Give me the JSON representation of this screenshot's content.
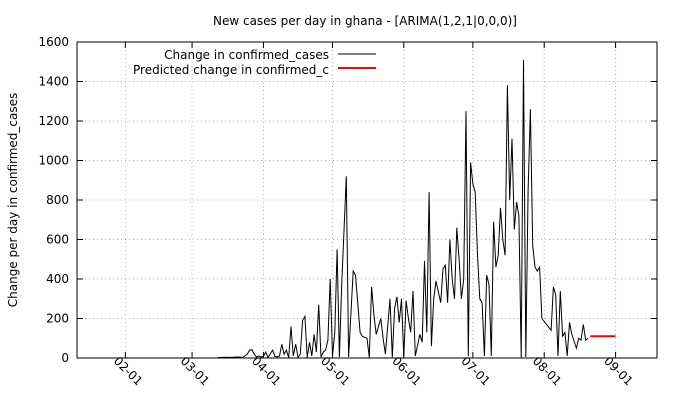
{
  "chart_data": {
    "type": "line",
    "title": "New cases per day in ghana -  [ARIMA(1,2,1|0,0,0)]",
    "xlabel": "",
    "ylabel": "Change per day in confirmed_cases",
    "ylim": [
      0,
      1600
    ],
    "yticks": [
      0,
      200,
      400,
      600,
      800,
      1000,
      1200,
      1400,
      1600
    ],
    "xlim": [
      "2020-01-11",
      "2020-09-19"
    ],
    "xticks": [
      "2020-02-01",
      "2020-03-01",
      "2020-04-01",
      "2020-05-01",
      "2020-06-01",
      "2020-07-01",
      "2020-08-01",
      "2020-09-01"
    ],
    "xtick_labels": [
      "02-01",
      "03-01",
      "04-01",
      "05-01",
      "06-01",
      "07-01",
      "08-01",
      "09-01"
    ],
    "grid": true,
    "legend_position": "top-left",
    "series": [
      {
        "name": "Change in confirmed_cases",
        "color": "#000000",
        "points": [
          [
            "2020-03-12",
            2
          ],
          [
            "2020-03-15",
            4
          ],
          [
            "2020-03-18",
            3
          ],
          [
            "2020-03-21",
            5
          ],
          [
            "2020-03-23",
            3
          ],
          [
            "2020-03-25",
            20
          ],
          [
            "2020-03-26",
            40
          ],
          [
            "2020-03-27",
            42
          ],
          [
            "2020-03-28",
            20
          ],
          [
            "2020-03-29",
            5
          ],
          [
            "2020-03-30",
            10
          ],
          [
            "2020-03-31",
            5
          ],
          [
            "2020-04-01",
            8
          ],
          [
            "2020-04-02",
            30
          ],
          [
            "2020-04-03",
            3
          ],
          [
            "2020-04-05",
            40
          ],
          [
            "2020-04-06",
            8
          ],
          [
            "2020-04-07",
            5
          ],
          [
            "2020-04-08",
            10
          ],
          [
            "2020-04-09",
            70
          ],
          [
            "2020-04-10",
            20
          ],
          [
            "2020-04-11",
            40
          ],
          [
            "2020-04-12",
            2
          ],
          [
            "2020-04-13",
            160
          ],
          [
            "2020-04-14",
            10
          ],
          [
            "2020-04-15",
            70
          ],
          [
            "2020-04-16",
            2
          ],
          [
            "2020-04-17",
            20
          ],
          [
            "2020-04-18",
            190
          ],
          [
            "2020-04-19",
            210
          ],
          [
            "2020-04-20",
            2
          ],
          [
            "2020-04-21",
            80
          ],
          [
            "2020-04-22",
            10
          ],
          [
            "2020-04-23",
            120
          ],
          [
            "2020-04-24",
            30
          ],
          [
            "2020-04-25",
            270
          ],
          [
            "2020-04-26",
            5
          ],
          [
            "2020-04-27",
            30
          ],
          [
            "2020-04-28",
            40
          ],
          [
            "2020-04-29",
            90
          ],
          [
            "2020-04-30",
            400
          ],
          [
            "2020-05-01",
            10
          ],
          [
            "2020-05-02",
            130
          ],
          [
            "2020-05-03",
            550
          ],
          [
            "2020-05-04",
            5
          ],
          [
            "2020-05-05",
            370
          ],
          [
            "2020-05-07",
            920
          ],
          [
            "2020-05-08",
            5
          ],
          [
            "2020-05-10",
            440
          ],
          [
            "2020-05-11",
            420
          ],
          [
            "2020-05-13",
            130
          ],
          [
            "2020-05-14",
            110
          ],
          [
            "2020-05-16",
            100
          ],
          [
            "2020-05-17",
            3
          ],
          [
            "2020-05-18",
            360
          ],
          [
            "2020-05-19",
            220
          ],
          [
            "2020-05-20",
            120
          ],
          [
            "2020-05-22",
            200
          ],
          [
            "2020-05-23",
            100
          ],
          [
            "2020-05-24",
            20
          ],
          [
            "2020-05-25",
            160
          ],
          [
            "2020-05-26",
            300
          ],
          [
            "2020-05-27",
            3
          ],
          [
            "2020-05-28",
            250
          ],
          [
            "2020-05-29",
            310
          ],
          [
            "2020-05-30",
            180
          ],
          [
            "2020-05-31",
            300
          ],
          [
            "2020-06-01",
            5
          ],
          [
            "2020-06-02",
            290
          ],
          [
            "2020-06-03",
            200
          ],
          [
            "2020-06-04",
            130
          ],
          [
            "2020-06-05",
            340
          ],
          [
            "2020-06-06",
            10
          ],
          [
            "2020-06-08",
            120
          ],
          [
            "2020-06-09",
            80
          ],
          [
            "2020-06-10",
            490
          ],
          [
            "2020-06-11",
            130
          ],
          [
            "2020-06-12",
            840
          ],
          [
            "2020-06-13",
            60
          ],
          [
            "2020-06-14",
            300
          ],
          [
            "2020-06-15",
            390
          ],
          [
            "2020-06-17",
            280
          ],
          [
            "2020-06-18",
            450
          ],
          [
            "2020-06-19",
            470
          ],
          [
            "2020-06-20",
            280
          ],
          [
            "2020-06-21",
            600
          ],
          [
            "2020-06-22",
            400
          ],
          [
            "2020-06-23",
            300
          ],
          [
            "2020-06-24",
            660
          ],
          [
            "2020-06-25",
            500
          ],
          [
            "2020-06-26",
            300
          ],
          [
            "2020-06-27",
            400
          ],
          [
            "2020-06-28",
            1250
          ],
          [
            "2020-06-29",
            10
          ],
          [
            "2020-06-30",
            990
          ],
          [
            "2020-07-01",
            880
          ],
          [
            "2020-07-02",
            840
          ],
          [
            "2020-07-03",
            520
          ],
          [
            "2020-07-04",
            300
          ],
          [
            "2020-07-05",
            280
          ],
          [
            "2020-07-06",
            10
          ],
          [
            "2020-07-07",
            420
          ],
          [
            "2020-07-08",
            370
          ],
          [
            "2020-07-09",
            10
          ],
          [
            "2020-07-10",
            690
          ],
          [
            "2020-07-11",
            460
          ],
          [
            "2020-07-12",
            520
          ],
          [
            "2020-07-13",
            760
          ],
          [
            "2020-07-14",
            600
          ],
          [
            "2020-07-15",
            520
          ],
          [
            "2020-07-16",
            1380
          ],
          [
            "2020-07-17",
            800
          ],
          [
            "2020-07-18",
            1110
          ],
          [
            "2020-07-19",
            650
          ],
          [
            "2020-07-20",
            790
          ],
          [
            "2020-07-21",
            720
          ],
          [
            "2020-07-22",
            2
          ],
          [
            "2020-07-23",
            1510
          ],
          [
            "2020-07-24",
            5
          ],
          [
            "2020-07-25",
            850
          ],
          [
            "2020-07-26",
            1260
          ],
          [
            "2020-07-27",
            570
          ],
          [
            "2020-07-28",
            460
          ],
          [
            "2020-07-29",
            440
          ],
          [
            "2020-07-30",
            460
          ],
          [
            "2020-07-31",
            200
          ],
          [
            "2020-08-02",
            170
          ],
          [
            "2020-08-04",
            140
          ],
          [
            "2020-08-05",
            360
          ],
          [
            "2020-08-06",
            320
          ],
          [
            "2020-08-07",
            10
          ],
          [
            "2020-08-08",
            340
          ],
          [
            "2020-08-09",
            110
          ],
          [
            "2020-08-10",
            130
          ],
          [
            "2020-08-11",
            10
          ],
          [
            "2020-08-12",
            180
          ],
          [
            "2020-08-13",
            120
          ],
          [
            "2020-08-15",
            50
          ],
          [
            "2020-08-16",
            100
          ],
          [
            "2020-08-17",
            90
          ],
          [
            "2020-08-18",
            170
          ],
          [
            "2020-08-19",
            90
          ],
          [
            "2020-08-20",
            100
          ]
        ]
      },
      {
        "name": "Predicted change in confirmed_c",
        "color": "#ff0000",
        "points": [
          [
            "2020-08-21",
            110
          ],
          [
            "2020-08-25",
            110
          ],
          [
            "2020-08-29",
            110
          ],
          [
            "2020-09-01",
            110
          ]
        ]
      }
    ]
  }
}
